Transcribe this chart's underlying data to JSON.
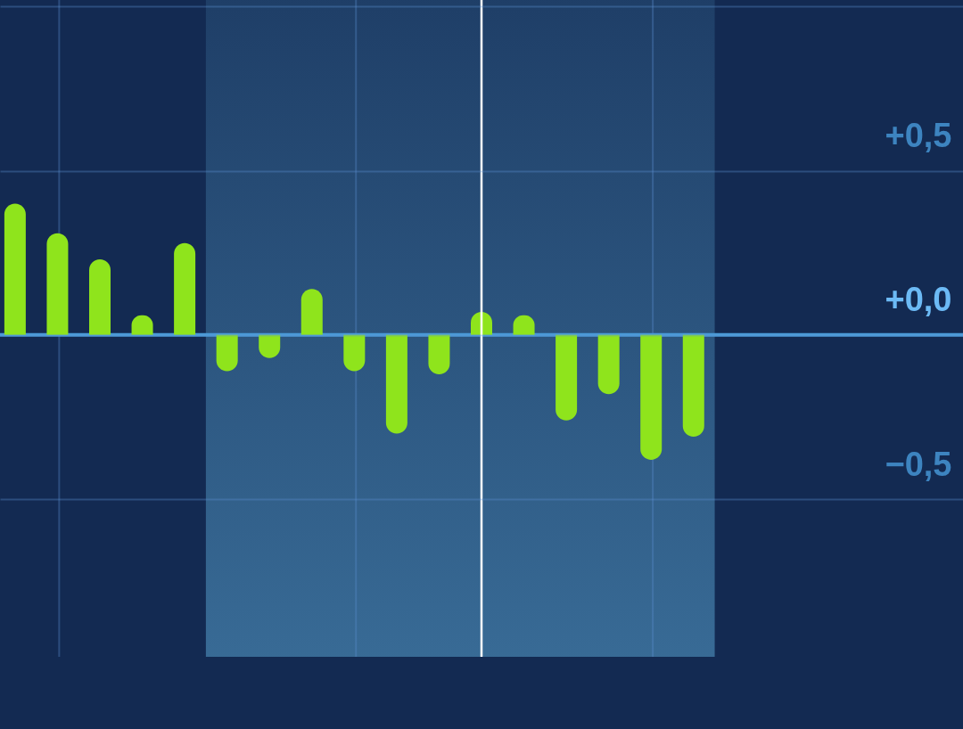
{
  "chart_data": {
    "type": "bar",
    "categories": [
      null,
      null,
      null,
      null,
      null,
      null,
      null,
      null,
      null,
      null,
      null,
      null,
      null,
      null,
      null,
      null,
      null,
      null,
      null,
      null,
      null,
      null,
      null
    ],
    "values": [
      0.4,
      0.31,
      0.23,
      0.06,
      0.28,
      -0.11,
      -0.07,
      0.14,
      -0.11,
      -0.3,
      -0.12,
      0.07,
      0.06,
      -0.26,
      -0.18,
      -0.38,
      -0.31,
      null,
      null,
      null,
      null,
      null,
      null
    ],
    "color": "#8fe41c",
    "ylim": [
      -0.98,
      1.02
    ],
    "yticks": [
      {
        "value": 1,
        "label": null
      },
      {
        "value": 0.5,
        "label": "+0,5"
      },
      {
        "value": 0,
        "label": "+0,0"
      },
      {
        "value": -0.5,
        "label": "−0,5"
      }
    ],
    "tick_labels": "y",
    "grid": true,
    "ref_lines": [
      {
        "axis": "y",
        "value": 0,
        "color": "#4a9bd8"
      }
    ]
  }
}
